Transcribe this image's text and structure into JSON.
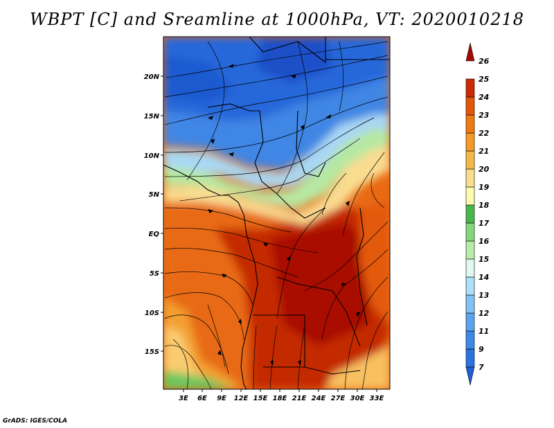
{
  "title": "WBPT [C] and Sreamline at 1000hPa, VT: 2020010218",
  "credit": "GrADS: IGES/COLA",
  "map": {
    "lat_labels": [
      "20N",
      "15N",
      "10N",
      "5N",
      "EQ",
      "5S",
      "10S",
      "15S"
    ],
    "lon_labels": [
      "3E",
      "6E",
      "9E",
      "12E",
      "15E",
      "18E",
      "21E",
      "24E",
      "27E",
      "30E",
      "33E"
    ]
  },
  "colorbar": {
    "labels": [
      "7",
      "9",
      "11",
      "12",
      "13",
      "14",
      "15",
      "16",
      "17",
      "18",
      "19",
      "20",
      "21",
      "22",
      "23",
      "24",
      "25",
      "26"
    ],
    "colors": [
      "#1e5fd6",
      "#2a72e0",
      "#3c8ae6",
      "#5aa6ee",
      "#82c2f4",
      "#ade0f8",
      "#e0f8ee",
      "#b8eca8",
      "#84d87a",
      "#48b84a",
      "#fefab0",
      "#fadc8c",
      "#f6b848",
      "#f59a24",
      "#f07a10",
      "#e45508",
      "#cc2a04",
      "#a40a00"
    ]
  }
}
